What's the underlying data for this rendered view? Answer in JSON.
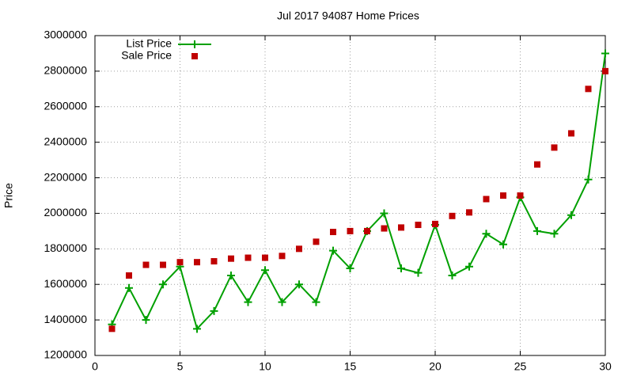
{
  "chart_data": {
    "type": "line",
    "title": "Jul 2017 94087 Home Prices",
    "ylabel": "Price",
    "x": [
      1,
      2,
      3,
      4,
      5,
      6,
      7,
      8,
      9,
      10,
      11,
      12,
      13,
      14,
      15,
      16,
      17,
      18,
      19,
      20,
      21,
      22,
      23,
      24,
      25,
      26,
      27,
      28,
      29,
      30
    ],
    "series": [
      {
        "name": "List Price",
        "color": "#00a000",
        "style": "linespoints",
        "values": [
          1375000,
          1580000,
          1400000,
          1600000,
          1700000,
          1350000,
          1450000,
          1650000,
          1500000,
          1680000,
          1500000,
          1600000,
          1500000,
          1790000,
          1690000,
          1900000,
          2000000,
          1690000,
          1665000,
          1935000,
          1650000,
          1700000,
          1885000,
          1825000,
          2090000,
          1900000,
          1885000,
          1990000,
          2190000,
          2900000
        ]
      },
      {
        "name": "Sale Price",
        "color": "#c00000",
        "style": "points",
        "values": [
          1350000,
          1650000,
          1710000,
          1710000,
          1725000,
          1725000,
          1730000,
          1745000,
          1750000,
          1750000,
          1760000,
          1800000,
          1840000,
          1895000,
          1900000,
          1900000,
          1915000,
          1920000,
          1935000,
          1940000,
          1985000,
          2005000,
          2080000,
          2100000,
          2100000,
          2275000,
          2370000,
          2450000,
          2700000,
          2800000
        ]
      }
    ],
    "xlim": [
      0,
      30
    ],
    "xticks": [
      0,
      5,
      10,
      15,
      20,
      25,
      30
    ],
    "ylim": [
      1200000,
      3000000
    ],
    "yticks": [
      1200000,
      1400000,
      1600000,
      1800000,
      2000000,
      2200000,
      2400000,
      2600000,
      2800000,
      3000000
    ],
    "grid": true,
    "legend": "top-left"
  }
}
